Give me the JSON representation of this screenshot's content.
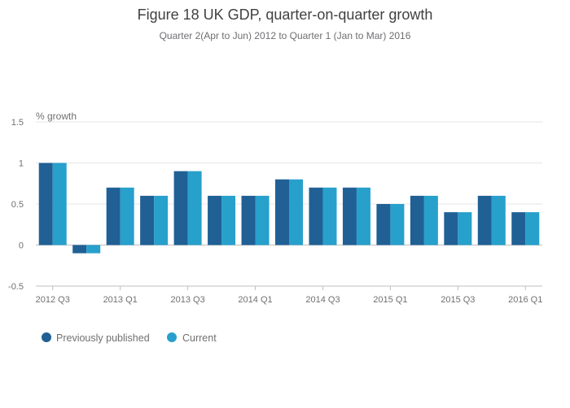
{
  "title": "Figure 18 UK GDP, quarter-on-quarter growth",
  "subtitle": "Quarter 2(Apr to Jun) 2012 to Quarter 1 (Jan to Mar) 2016",
  "colors": {
    "previous": "#206095",
    "current": "#27a0cc",
    "grid": "#e6e6e6",
    "axis": "#bfbfbf"
  },
  "chart_data": {
    "type": "bar",
    "title": "Figure 18 UK GDP, quarter-on-quarter growth",
    "subtitle": "Quarter 2(Apr to Jun) 2012 to Quarter 1 (Jan to Mar) 2016",
    "ylabel": "% growth",
    "ylim": [
      -0.5,
      1.5
    ],
    "yticks": [
      "1.5",
      "1",
      "0.5",
      "0",
      "-0.5"
    ],
    "ytick_values": [
      1.5,
      1,
      0.5,
      0,
      -0.5
    ],
    "categories": [
      "2012 Q3",
      "2012 Q4",
      "2013 Q1",
      "2013 Q2",
      "2013 Q3",
      "2013 Q4",
      "2014 Q1",
      "2014 Q2",
      "2014 Q3",
      "2014 Q4",
      "2015 Q1",
      "2015 Q2",
      "2015 Q3",
      "2015 Q4",
      "2016 Q1"
    ],
    "xtick_labels": [
      "2012 Q3",
      "",
      "2013 Q1",
      "",
      "2013 Q3",
      "",
      "2014 Q1",
      "",
      "2014 Q3",
      "",
      "2015 Q1",
      "",
      "2015 Q3",
      "",
      "2016 Q1"
    ],
    "series": [
      {
        "name": "Previously published",
        "values": [
          1.0,
          -0.1,
          0.7,
          0.6,
          0.9,
          0.6,
          0.6,
          0.8,
          0.7,
          0.7,
          0.5,
          0.6,
          0.4,
          0.6,
          0.4
        ]
      },
      {
        "name": "Current",
        "values": [
          1.0,
          -0.1,
          0.7,
          0.6,
          0.9,
          0.6,
          0.6,
          0.8,
          0.7,
          0.7,
          0.5,
          0.6,
          0.4,
          0.6,
          0.4
        ]
      }
    ],
    "grid": true,
    "legend_position": "bottom-left"
  }
}
